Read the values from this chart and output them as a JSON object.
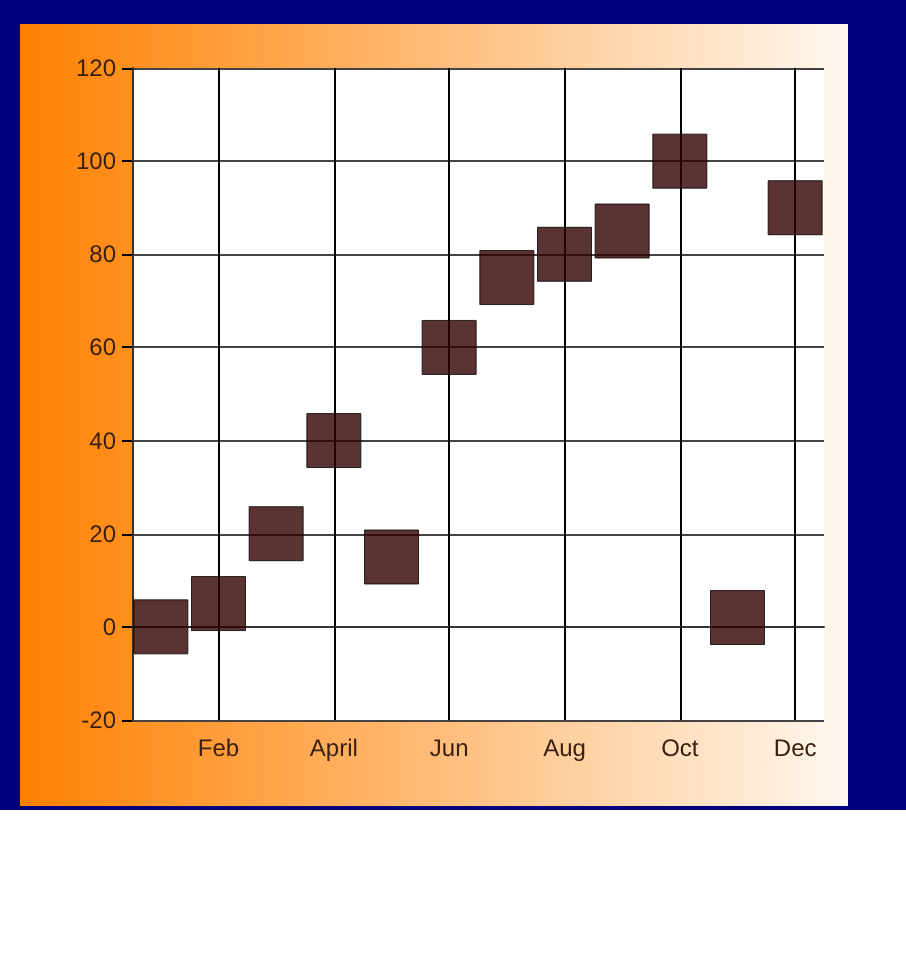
{
  "chart_data": {
    "type": "scatter",
    "categories": [
      null,
      "Feb",
      null,
      "April",
      null,
      "Jun",
      null,
      "Aug",
      null,
      "Oct",
      null,
      "Dec"
    ],
    "series": [
      {
        "color": "#330000",
        "values": [
          0,
          5,
          20,
          40,
          15,
          60,
          75,
          80,
          85,
          100,
          2,
          90
        ]
      }
    ],
    "ylim": [
      -20,
      120
    ],
    "yticks": [
      -20,
      0,
      20,
      40,
      60,
      80,
      100,
      120
    ],
    "grid": true,
    "marker": "square"
  }
}
